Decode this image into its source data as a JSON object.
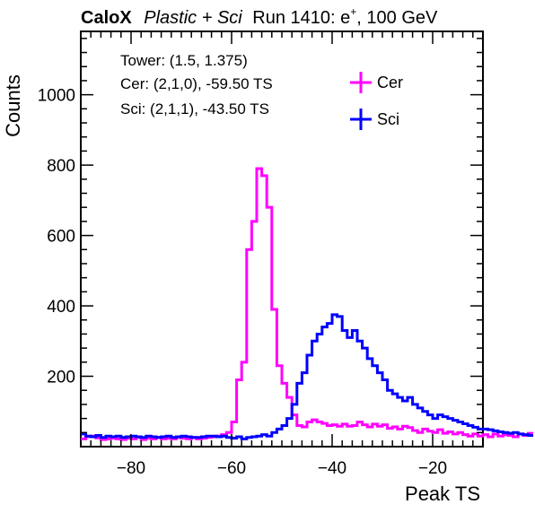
{
  "chart_data": {
    "type": "histogram",
    "title_parts": {
      "bold": "CaloX",
      "italic": "Plastic + Sci",
      "plain": "Run 1410: e",
      "sup": "+",
      "tail": ", 100 GeV"
    },
    "xlabel": "Peak TS",
    "ylabel": "Counts",
    "xlim": [
      -90,
      -10
    ],
    "ylim": [
      0,
      1180
    ],
    "x_ticks": [
      -80,
      -60,
      -40,
      -20
    ],
    "y_ticks": [
      200,
      400,
      600,
      800,
      1000
    ],
    "grid": false,
    "annotations": [
      "Tower: (1.5, 1.375)",
      "Cer: (2,1,0), -59.50 TS",
      "Sci: (2,1,1), -43.50 TS"
    ],
    "legend_position": "top-right",
    "bin_width": 1,
    "x_start": -90,
    "series": [
      {
        "name": "Cer",
        "color": "#ff00ff",
        "values": [
          22,
          28,
          30,
          25,
          20,
          22,
          24,
          22,
          20,
          24,
          22,
          26,
          20,
          24,
          22,
          26,
          22,
          24,
          22,
          26,
          24,
          22,
          26,
          22,
          24,
          26,
          28,
          30,
          34,
          40,
          70,
          190,
          240,
          560,
          640,
          790,
          770,
          680,
          390,
          230,
          180,
          140,
          90,
          60,
          56,
          70,
          76,
          70,
          66,
          60,
          62,
          58,
          64,
          58,
          60,
          70,
          62,
          56,
          64,
          58,
          62,
          52,
          56,
          50,
          58,
          54,
          46,
          40,
          50,
          44,
          40,
          48,
          38,
          42,
          36,
          40,
          34,
          30,
          36,
          30,
          34,
          28,
          36,
          30,
          34,
          32,
          28,
          36,
          32,
          38
        ]
      },
      {
        "name": "Sci",
        "color": "#0000ff",
        "values": [
          36,
          30,
          28,
          32,
          26,
          30,
          28,
          30,
          26,
          28,
          30,
          28,
          26,
          30,
          28,
          26,
          28,
          30,
          26,
          28,
          30,
          28,
          26,
          26,
          28,
          30,
          30,
          28,
          30,
          26,
          24,
          28,
          22,
          26,
          28,
          30,
          34,
          30,
          40,
          50,
          60,
          80,
          120,
          180,
          210,
          260,
          300,
          320,
          340,
          350,
          375,
          370,
          330,
          310,
          330,
          300,
          280,
          250,
          230,
          210,
          190,
          160,
          150,
          140,
          130,
          140,
          120,
          110,
          100,
          90,
          80,
          90,
          85,
          80,
          75,
          70,
          65,
          60,
          55,
          50,
          50,
          48,
          45,
          42,
          40,
          38,
          40,
          36,
          34,
          32
        ]
      }
    ]
  }
}
